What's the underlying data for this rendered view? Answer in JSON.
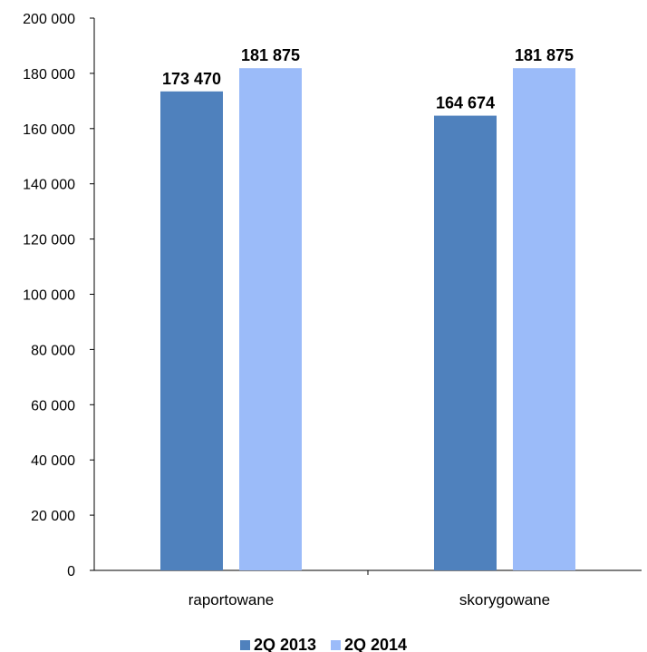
{
  "chart_data": {
    "type": "bar",
    "categories": [
      "raportowane",
      "skorygowane"
    ],
    "series": [
      {
        "name": "2Q 2013",
        "values": [
          173470,
          164674
        ],
        "labels": [
          "173 470",
          "164 674"
        ],
        "color": "#4F81BD"
      },
      {
        "name": "2Q 2014",
        "values": [
          181875,
          181875
        ],
        "labels": [
          "181 875",
          "181 875"
        ],
        "color": "#9BBBF9"
      }
    ],
    "ylim": [
      0,
      200000
    ],
    "yticks": [
      0,
      20000,
      40000,
      60000,
      80000,
      100000,
      120000,
      140000,
      160000,
      180000,
      200000
    ],
    "ytick_labels": [
      "0",
      "20 000",
      "40 000",
      "60 000",
      "80 000",
      "100 000",
      "120 000",
      "140 000",
      "160 000",
      "180 000",
      "200 000"
    ],
    "grid": false,
    "legend_position": "bottom",
    "title": "",
    "xlabel": "",
    "ylabel": ""
  }
}
